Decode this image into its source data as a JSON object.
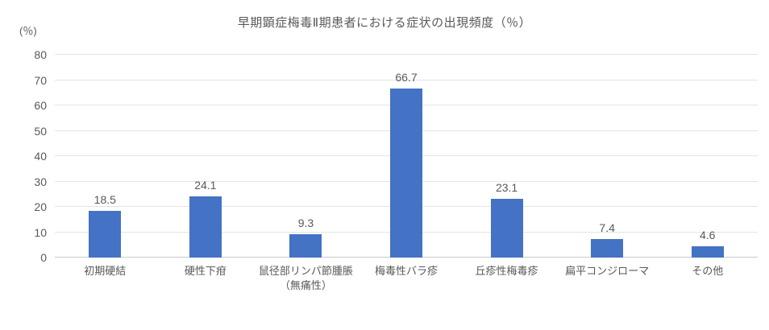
{
  "chart_data": {
    "type": "bar",
    "title": "早期顕症梅毒Ⅱ期患者における症状の出現頻度（％）",
    "y_axis_unit": "(％)",
    "categories": [
      "初期硬結",
      "硬性下疳",
      "鼠径部リンパ節腫脹\n（無痛性）",
      "梅毒性バラ疹",
      "丘疹性梅毒疹",
      "扁平コンジローマ",
      "その他"
    ],
    "values": [
      18.5,
      24.1,
      9.3,
      66.7,
      23.1,
      7.4,
      4.6
    ],
    "value_labels": [
      "18.5",
      "24.1",
      "9.3",
      "66.7",
      "23.1",
      "7.4",
      "4.6"
    ],
    "xlabel": "",
    "ylabel": "(％)",
    "ylim": [
      0,
      80
    ],
    "ytick_step": 10,
    "yticks": [
      "0",
      "10",
      "20",
      "30",
      "40",
      "50",
      "60",
      "70",
      "80"
    ],
    "grid": true,
    "legend": "none",
    "bar_color": "#4472C4",
    "gridline_color": "#e4e4e4",
    "axis_line_color": "#c9c9c9",
    "text_color": "#595959"
  }
}
